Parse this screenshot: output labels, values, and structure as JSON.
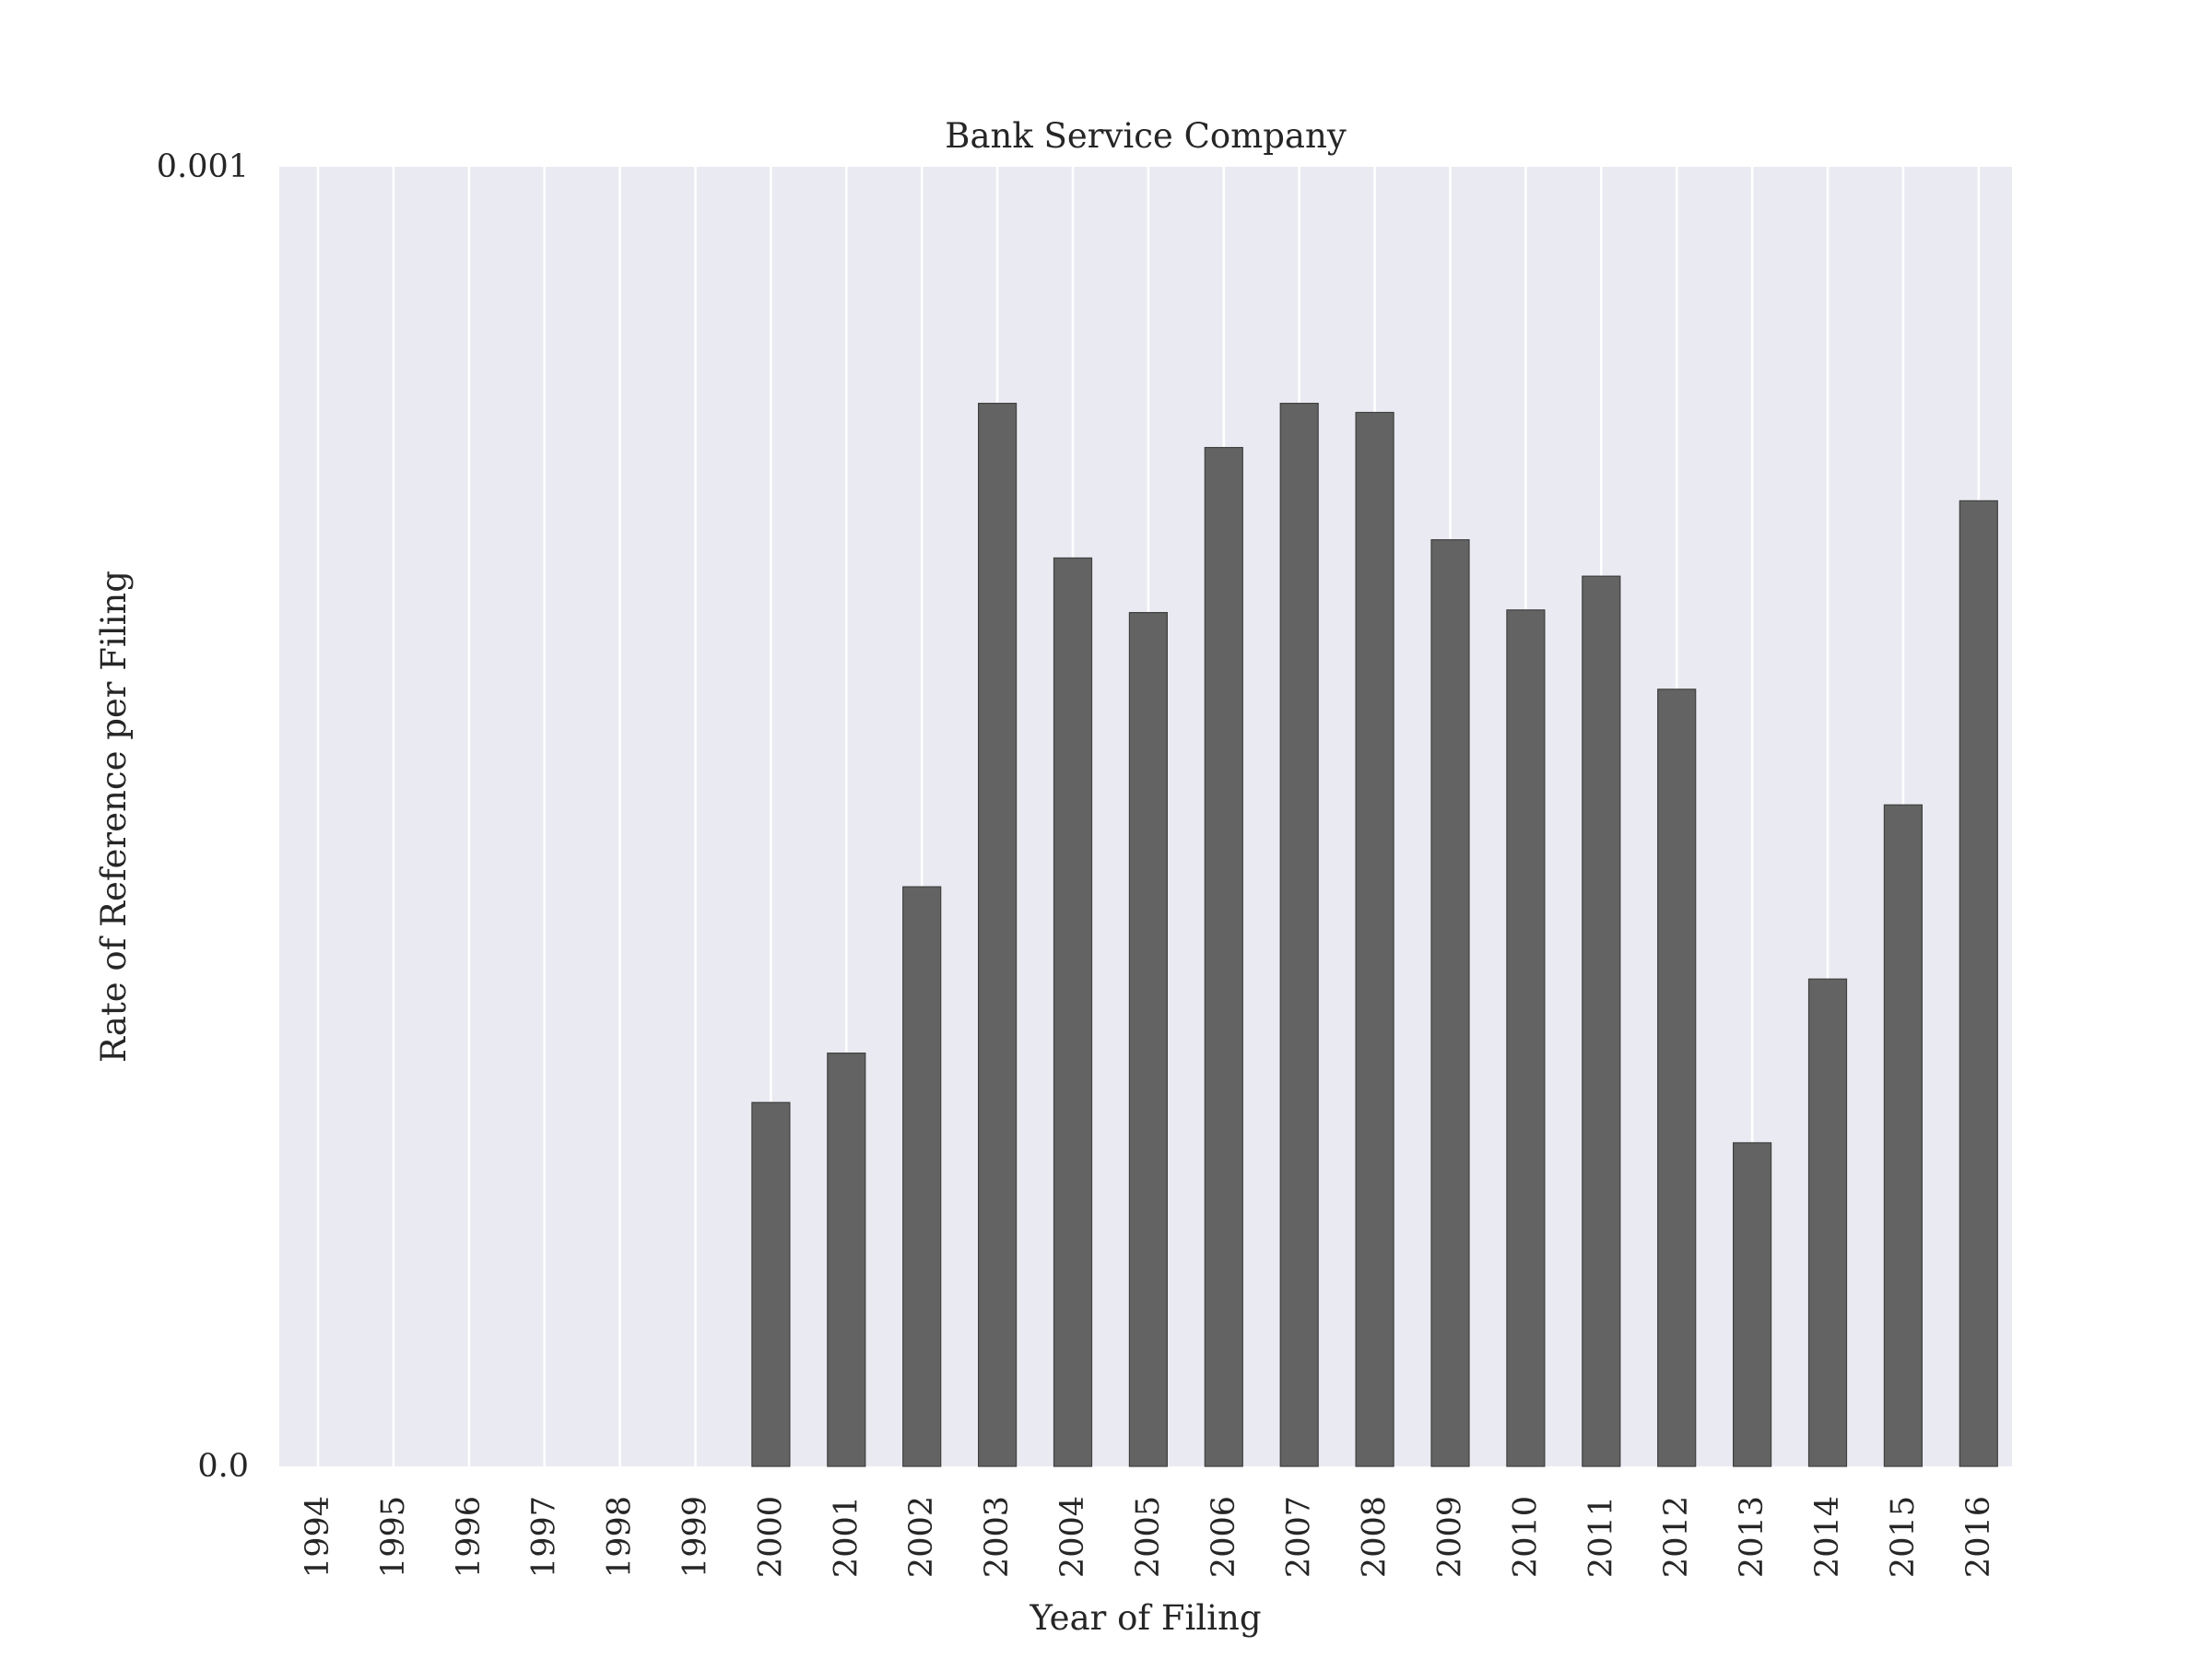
{
  "chart_data": {
    "type": "bar",
    "title": "Bank Service Company",
    "xlabel": "Year of Filing",
    "ylabel": "Rate of Reference per Filing",
    "categories": [
      "1994",
      "1995",
      "1996",
      "1997",
      "1998",
      "1999",
      "2000",
      "2001",
      "2002",
      "2003",
      "2004",
      "2005",
      "2006",
      "2007",
      "2008",
      "2009",
      "2010",
      "2011",
      "2012",
      "2013",
      "2014",
      "2015",
      "2016"
    ],
    "values": [
      0,
      0,
      0,
      0,
      0,
      0,
      0.00028,
      0.000318,
      0.000446,
      0.000818,
      0.000699,
      0.000657,
      0.000784,
      0.000818,
      0.000811,
      0.000713,
      0.000659,
      0.000685,
      0.000598,
      0.000249,
      0.000375,
      0.000509,
      0.000743
    ],
    "ylim": [
      0,
      0.001
    ],
    "yticks": [
      "0.0",
      "0.001"
    ],
    "grid": "vertical",
    "legend": "none",
    "colors": {
      "background": "#eaeaf2",
      "bar": "#636363",
      "grid": "#ffffff"
    }
  }
}
